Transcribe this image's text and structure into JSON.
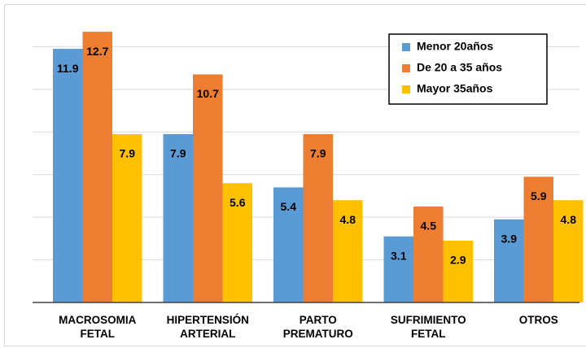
{
  "chart_data": {
    "type": "bar",
    "categories": [
      "MACROSOMIA FETAL",
      "HIPERTENSIÓN ARTERIAL",
      "PARTO PREMATURO",
      "SUFRIMIENTO FETAL",
      "OTROS"
    ],
    "series": [
      {
        "name": "Menor 20años",
        "color": "#5b9bd5",
        "values": [
          11.9,
          7.9,
          5.4,
          3.1,
          3.9
        ]
      },
      {
        "name": "De 20 a 35 años",
        "color": "#ed7d31",
        "values": [
          12.7,
          10.7,
          7.9,
          4.5,
          5.9
        ]
      },
      {
        "name": "Mayor 35años",
        "color": "#ffc000",
        "values": [
          7.9,
          5.6,
          4.8,
          2.9,
          4.8
        ]
      }
    ],
    "ylim": [
      0,
      14
    ],
    "yticks": [
      2,
      4,
      6,
      8,
      10,
      12
    ],
    "grid": true,
    "legend": "upper right"
  }
}
